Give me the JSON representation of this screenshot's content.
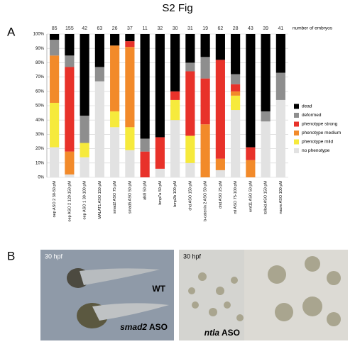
{
  "figure_title": "S2 Fig",
  "panel_a_label": "A",
  "panel_b_label": "B",
  "chart_data": {
    "type": "stacked_bar",
    "counts_label": "number of embryos",
    "categories": [
      "oep ASO 2 30-50 pM",
      "oep ASO 2 120-150 pM",
      "oep ASO 1 30-100 pM",
      "MALAT1 ASO 150 pM",
      "smad2 ASO 75 pM",
      "smad5 ASO 50 pM",
      "alk8 50 pM",
      "bmp7a 50 pM",
      "bmp2b 100 pM",
      "chd ASO 150 pM",
      "b-catenin 2 ASO 50 pM",
      "dnd ASO 25 pM",
      "ntl ASO 75-100 pM",
      "wnt11 ASO 50 pM",
      "tolloid ASO 150 pM",
      "nacre ASO 100 pM"
    ],
    "embryo_counts": [
      85,
      155,
      42,
      63,
      26,
      37,
      11,
      32,
      30,
      31,
      19,
      62,
      28,
      43,
      39,
      41
    ],
    "series": [
      {
        "name": "no phenotype",
        "color": "#e2e2e2",
        "values": [
          21,
          2,
          14,
          67,
          35,
          19,
          0,
          6,
          40,
          10,
          0,
          5,
          47,
          0,
          39,
          54
        ]
      },
      {
        "name": "phenotype mild",
        "color": "#f6ea3c",
        "values": [
          31,
          0,
          10,
          0,
          11,
          16,
          0,
          0,
          14,
          19,
          0,
          0,
          10,
          0,
          0,
          0
        ]
      },
      {
        "name": "phenotype medium",
        "color": "#f28a2a",
        "values": [
          33,
          16,
          0,
          0,
          46,
          56,
          0,
          0,
          0,
          0,
          37,
          8,
          3,
          12,
          0,
          0
        ]
      },
      {
        "name": "phenotype strong",
        "color": "#e8322a",
        "values": [
          0,
          59,
          0,
          0,
          0,
          4,
          18,
          22,
          6,
          45,
          32,
          69,
          5,
          9,
          0,
          0
        ]
      },
      {
        "name": "deformed",
        "color": "#8e8e8e",
        "values": [
          11,
          8,
          19,
          10,
          0,
          0,
          9,
          0,
          0,
          6,
          15,
          0,
          7,
          0,
          7,
          19
        ]
      },
      {
        "name": "dead",
        "color": "#000000",
        "values": [
          4,
          15,
          57,
          23,
          8,
          5,
          73,
          72,
          40,
          20,
          16,
          18,
          28,
          79,
          54,
          27
        ]
      }
    ],
    "ylim": [
      0,
      100
    ],
    "yticks": [
      {
        "value": 0,
        "label": "0%"
      },
      {
        "value": 10,
        "label": "10%"
      },
      {
        "value": 20,
        "label": "20%"
      },
      {
        "value": 30,
        "label": "30%"
      },
      {
        "value": 40,
        "label": "40%"
      },
      {
        "value": 50,
        "label": "50%"
      },
      {
        "value": 60,
        "label": "60%"
      },
      {
        "value": 70,
        "label": "70%"
      },
      {
        "value": 80,
        "label": "80%"
      },
      {
        "value": 90,
        "label": "90%"
      },
      {
        "value": 100,
        "label": "100%"
      }
    ],
    "grid": true
  },
  "photos": {
    "left_stage": "30 hpf",
    "left_top_label": "WT",
    "left_bottom_gene": "smad2",
    "left_bottom_suffix": "ASO",
    "right_stage": "30 hpf",
    "right_gene": "ntla",
    "right_suffix": "ASO"
  }
}
